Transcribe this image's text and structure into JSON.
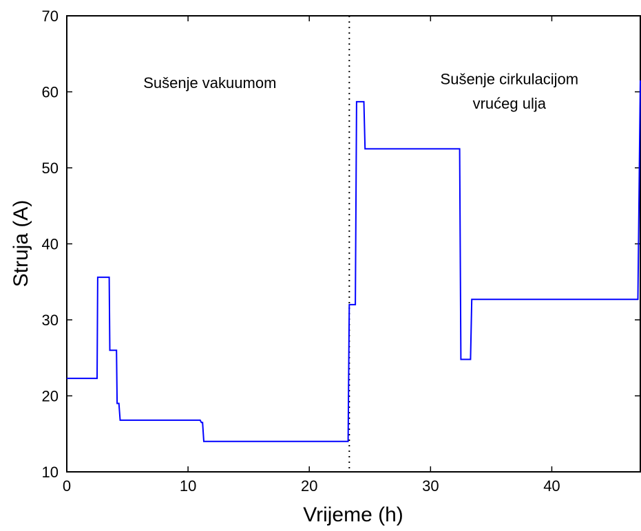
{
  "chart_data": {
    "type": "line",
    "title": "",
    "xlabel": "Vrijeme (h)",
    "ylabel": "Struja (A)",
    "xlim": [
      0,
      47.3
    ],
    "ylim": [
      10,
      70
    ],
    "xticks": [
      0,
      10,
      20,
      30,
      40
    ],
    "yticks": [
      10,
      20,
      30,
      40,
      50,
      60,
      70
    ],
    "grid": false,
    "legend": "none",
    "series": [
      {
        "color": "#0000ff",
        "x": [
          0,
          2.5,
          2.55,
          3.5,
          3.55,
          4.1,
          4.15,
          4.3,
          4.4,
          11.0,
          11.1,
          11.2,
          11.3,
          23.2,
          23.3,
          23.4,
          23.8,
          23.9,
          24.0,
          24.5,
          24.6,
          32.4,
          32.5,
          33.3,
          33.4,
          47.1,
          47.3
        ],
        "y": [
          22.3,
          22.3,
          35.6,
          35.6,
          26.0,
          26.0,
          19.0,
          19.0,
          16.8,
          16.8,
          16.5,
          16.5,
          14.0,
          14.0,
          32.0,
          32.0,
          32.0,
          58.7,
          58.7,
          58.7,
          52.5,
          52.5,
          24.8,
          24.8,
          32.7,
          32.7,
          61.5
        ]
      }
    ],
    "divider_x": 23.3,
    "divider_color": "#000000",
    "annotations": [
      {
        "text": "Sušenje vakuumom",
        "x": 11.8,
        "y": 60.5
      },
      {
        "text": "Sušenje cirkulacijom",
        "x": 36.5,
        "y": 61.0
      },
      {
        "text": "vrućeg ulja",
        "x": 36.5,
        "y": 57.8
      }
    ]
  }
}
